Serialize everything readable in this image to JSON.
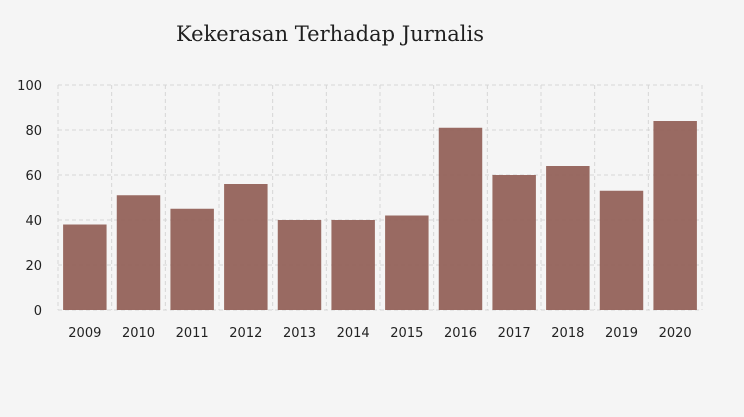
{
  "chart_data": {
    "type": "bar",
    "title": "Kekerasan Terhadap Jurnalis",
    "categories": [
      "2009",
      "2010",
      "2011",
      "2012",
      "2013",
      "2014",
      "2015",
      "2016",
      "2017",
      "2018",
      "2019",
      "2020"
    ],
    "values": [
      38,
      51,
      45,
      56,
      40,
      40,
      42,
      81,
      60,
      64,
      53,
      84
    ],
    "xlabel": "",
    "ylabel": "",
    "ylim": [
      0,
      100
    ],
    "yticks": [
      0,
      20,
      40,
      60,
      80,
      100
    ],
    "grid": true,
    "legend": "none",
    "bar_color": "#94625a"
  }
}
